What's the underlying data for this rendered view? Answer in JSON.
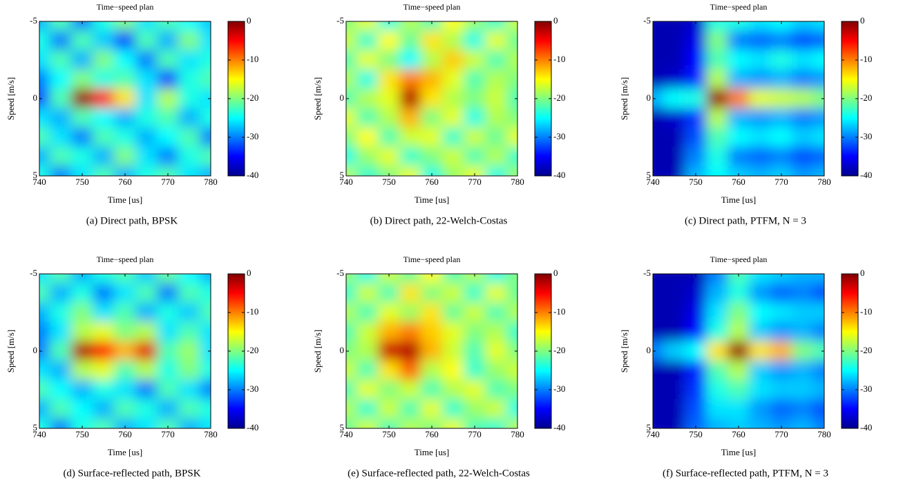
{
  "chart_data": [
    {
      "type": "heatmap",
      "title": "Time−speed plan",
      "x_label": "Time [us]",
      "y_label": "Speed [m/s]",
      "caption": "(a)  Direct path, BPSK",
      "x": [
        740,
        745,
        750,
        755,
        760,
        765,
        770,
        775,
        780
      ],
      "y": [
        -5,
        -3.75,
        -2.5,
        -1.25,
        0,
        1.25,
        2.5,
        3.75,
        5
      ],
      "z": [
        [
          -28,
          -22,
          -30,
          -24,
          -20,
          -26,
          -22,
          -25,
          -27
        ],
        [
          -24,
          -30,
          -22,
          -27,
          -32,
          -22,
          -28,
          -20,
          -26
        ],
        [
          -26,
          -22,
          -28,
          -20,
          -25,
          -30,
          -22,
          -26,
          -24
        ],
        [
          -30,
          -25,
          -20,
          -24,
          -22,
          -26,
          -32,
          -24,
          -22
        ],
        [
          -32,
          -22,
          -1,
          -6,
          -14,
          -26,
          -18,
          -24,
          -26
        ],
        [
          -26,
          -28,
          -22,
          -25,
          -28,
          -24,
          -22,
          -28,
          -24
        ],
        [
          -22,
          -26,
          -30,
          -22,
          -24,
          -28,
          -25,
          -22,
          -30
        ],
        [
          -28,
          -22,
          -24,
          -28,
          -20,
          -26,
          -30,
          -24,
          -22
        ],
        [
          -24,
          -30,
          -26,
          -22,
          -28,
          -24,
          -22,
          -26,
          -28
        ]
      ],
      "xlim": [
        740,
        780
      ],
      "ylim": [
        -5,
        5
      ],
      "y_reversed": true,
      "xticks": [
        740,
        750,
        760,
        770,
        780
      ],
      "yticks": [
        -5,
        0,
        5
      ],
      "clim": [
        -40,
        0
      ],
      "cticks": [
        0,
        -10,
        -20,
        -30,
        -40
      ],
      "colormap": "jet"
    },
    {
      "type": "heatmap",
      "title": "Time−speed plan",
      "x_label": "Time [us]",
      "y_label": "Speed [m/s]",
      "caption": "(b)  Direct path, 22-Welch-Costas",
      "x": [
        740,
        745,
        750,
        755,
        760,
        765,
        770,
        775,
        780
      ],
      "y": [
        -5,
        -3.75,
        -2.5,
        -1.25,
        0,
        1.25,
        2.5,
        3.75,
        5
      ],
      "z": [
        [
          -20,
          -16,
          -24,
          -18,
          -22,
          -15,
          -19,
          -23,
          -17
        ],
        [
          -17,
          -23,
          -15,
          -21,
          -14,
          -18,
          -24,
          -16,
          -21
        ],
        [
          -22,
          -16,
          -20,
          -25,
          -18,
          -13,
          -17,
          -22,
          -18
        ],
        [
          -18,
          -24,
          -14,
          -10,
          -12,
          -16,
          -22,
          -18,
          -20
        ],
        [
          -22,
          -18,
          -16,
          -2,
          -14,
          -18,
          -20,
          -17,
          -22
        ],
        [
          -16,
          -22,
          -18,
          -12,
          -20,
          -16,
          -24,
          -18,
          -20
        ],
        [
          -20,
          -15,
          -22,
          -17,
          -16,
          -23,
          -17,
          -21,
          -16
        ],
        [
          -24,
          -19,
          -16,
          -23,
          -20,
          -17,
          -22,
          -18,
          -23
        ],
        [
          -18,
          -23,
          -20,
          -16,
          -24,
          -19,
          -16,
          -24,
          -19
        ]
      ],
      "xlim": [
        740,
        780
      ],
      "ylim": [
        -5,
        5
      ],
      "y_reversed": true,
      "xticks": [
        740,
        750,
        760,
        770,
        780
      ],
      "yticks": [
        -5,
        0,
        5
      ],
      "clim": [
        -40,
        0
      ],
      "cticks": [
        0,
        -10,
        -20,
        -30,
        -40
      ],
      "colormap": "jet"
    },
    {
      "type": "heatmap",
      "title": "Time−speed plan",
      "x_label": "Time [us]",
      "y_label": "Speed [m/s]",
      "caption": "(c)  Direct path, PTFM, N = 3",
      "x": [
        740,
        745,
        750,
        755,
        760,
        765,
        770,
        775,
        780
      ],
      "y": [
        -5,
        -3.75,
        -2.5,
        -1.25,
        0,
        1.25,
        2.5,
        3.75,
        5
      ],
      "z": [
        [
          -38,
          -38,
          -37,
          -24,
          -24,
          -26,
          -25,
          -27,
          -26
        ],
        [
          -38,
          -38,
          -36,
          -20,
          -30,
          -31,
          -30,
          -32,
          -31
        ],
        [
          -38,
          -38,
          -35,
          -22,
          -25,
          -26,
          -24,
          -26,
          -25
        ],
        [
          -38,
          -37,
          -34,
          -18,
          -28,
          -29,
          -28,
          -30,
          -29
        ],
        [
          -28,
          -25,
          -24,
          -1,
          -10,
          -16,
          -17,
          -18,
          -20
        ],
        [
          -38,
          -37,
          -33,
          -18,
          -28,
          -29,
          -28,
          -30,
          -29
        ],
        [
          -38,
          -38,
          -32,
          -22,
          -25,
          -26,
          -25,
          -27,
          -26
        ],
        [
          -38,
          -38,
          -30,
          -24,
          -30,
          -31,
          -30,
          -32,
          -31
        ],
        [
          -38,
          -38,
          -28,
          -25,
          -27,
          -28,
          -27,
          -29,
          -28
        ]
      ],
      "xlim": [
        740,
        780
      ],
      "ylim": [
        -5,
        5
      ],
      "y_reversed": true,
      "xticks": [
        740,
        750,
        760,
        770,
        780
      ],
      "yticks": [
        -5,
        0,
        5
      ],
      "clim": [
        -40,
        0
      ],
      "cticks": [
        0,
        -10,
        -20,
        -30,
        -40
      ],
      "colormap": "jet"
    },
    {
      "type": "heatmap",
      "title": "Time−speed plan",
      "x_label": "Time [us]",
      "y_label": "Speed [m/s]",
      "caption": "(d)  Surface-reflected path, BPSK",
      "x": [
        740,
        745,
        750,
        755,
        760,
        765,
        770,
        775,
        780
      ],
      "y": [
        -5,
        -3.75,
        -2.5,
        -1.25,
        0,
        1.25,
        2.5,
        3.75,
        5
      ],
      "z": [
        [
          -26,
          -22,
          -28,
          -24,
          -22,
          -27,
          -21,
          -25,
          -28
        ],
        [
          -22,
          -28,
          -24,
          -30,
          -26,
          -22,
          -30,
          -22,
          -24
        ],
        [
          -28,
          -24,
          -20,
          -26,
          -22,
          -28,
          -24,
          -27,
          -22
        ],
        [
          -30,
          -26,
          -18,
          -16,
          -20,
          -18,
          -26,
          -22,
          -26
        ],
        [
          -30,
          -22,
          -2,
          -5,
          -12,
          -4,
          -22,
          -19,
          -26
        ],
        [
          -26,
          -28,
          -18,
          -16,
          -22,
          -18,
          -24,
          -20,
          -24
        ],
        [
          -22,
          -25,
          -28,
          -24,
          -26,
          -30,
          -22,
          -26,
          -30
        ],
        [
          -28,
          -22,
          -25,
          -28,
          -22,
          -24,
          -28,
          -22,
          -24
        ],
        [
          -24,
          -30,
          -24,
          -22,
          -28,
          -26,
          -22,
          -28,
          -26
        ]
      ],
      "xlim": [
        740,
        780
      ],
      "ylim": [
        -5,
        5
      ],
      "y_reversed": true,
      "xticks": [
        740,
        750,
        760,
        770,
        780
      ],
      "yticks": [
        -5,
        0,
        5
      ],
      "clim": [
        -40,
        0
      ],
      "cticks": [
        0,
        -10,
        -20,
        -30,
        -40
      ],
      "colormap": "jet"
    },
    {
      "type": "heatmap",
      "title": "Time−speed plan",
      "x_label": "Time [us]",
      "y_label": "Speed [m/s]",
      "caption": "(e)  Surface-reflected path, 22-Welch-Costas",
      "x": [
        740,
        745,
        750,
        755,
        760,
        765,
        770,
        775,
        780
      ],
      "y": [
        -5,
        -3.75,
        -2.5,
        -1.25,
        0,
        1.25,
        2.5,
        3.75,
        5
      ],
      "z": [
        [
          -19,
          -24,
          -17,
          -21,
          -15,
          -22,
          -18,
          -24,
          -20
        ],
        [
          -23,
          -17,
          -22,
          -14,
          -20,
          -17,
          -23,
          -16,
          -21
        ],
        [
          -18,
          -22,
          -16,
          -19,
          -14,
          -21,
          -17,
          -22,
          -18
        ],
        [
          -22,
          -17,
          -12,
          -10,
          -13,
          -16,
          -20,
          -18,
          -23
        ],
        [
          -20,
          -18,
          -3,
          -2,
          -12,
          -17,
          -22,
          -16,
          -20
        ],
        [
          -17,
          -22,
          -14,
          -9,
          -18,
          -15,
          -23,
          -19,
          -17
        ],
        [
          -22,
          -16,
          -20,
          -17,
          -22,
          -18,
          -16,
          -22,
          -20
        ],
        [
          -18,
          -23,
          -17,
          -22,
          -16,
          -23,
          -19,
          -17,
          -24
        ],
        [
          -21,
          -17,
          -22,
          -18,
          -20,
          -16,
          -22,
          -23,
          -18
        ]
      ],
      "xlim": [
        740,
        780
      ],
      "ylim": [
        -5,
        5
      ],
      "y_reversed": true,
      "xticks": [
        740,
        750,
        760,
        770,
        780
      ],
      "yticks": [
        -5,
        0,
        5
      ],
      "clim": [
        -40,
        0
      ],
      "cticks": [
        0,
        -10,
        -20,
        -30,
        -40
      ],
      "colormap": "jet"
    },
    {
      "type": "heatmap",
      "title": "Time−speed plan",
      "x_label": "Time [us]",
      "y_label": "Speed [m/s]",
      "caption": "(f)  Surface-reflected path, PTFM, N = 3",
      "x": [
        740,
        745,
        750,
        755,
        760,
        765,
        770,
        775,
        780
      ],
      "y": [
        -5,
        -3.75,
        -2.5,
        -1.25,
        0,
        1.25,
        2.5,
        3.75,
        5
      ],
      "z": [
        [
          -38,
          -38,
          -38,
          -30,
          -22,
          -26,
          -27,
          -28,
          -28
        ],
        [
          -38,
          -38,
          -37,
          -28,
          -24,
          -29,
          -31,
          -30,
          -32
        ],
        [
          -38,
          -38,
          -36,
          -26,
          -20,
          -25,
          -26,
          -27,
          -27
        ],
        [
          -38,
          -38,
          -35,
          -24,
          -18,
          -27,
          -29,
          -28,
          -30
        ],
        [
          -30,
          -27,
          -25,
          -14,
          -1,
          -14,
          -12,
          -20,
          -22
        ],
        [
          -38,
          -38,
          -34,
          -22,
          -18,
          -27,
          -29,
          -28,
          -30
        ],
        [
          -38,
          -38,
          -33,
          -24,
          -22,
          -26,
          -27,
          -27,
          -28
        ],
        [
          -38,
          -38,
          -32,
          -26,
          -26,
          -29,
          -31,
          -30,
          -32
        ],
        [
          -38,
          -38,
          -31,
          -28,
          -27,
          -28,
          -29,
          -28,
          -30
        ]
      ],
      "xlim": [
        740,
        780
      ],
      "ylim": [
        -5,
        5
      ],
      "y_reversed": true,
      "xticks": [
        740,
        750,
        760,
        770,
        780
      ],
      "yticks": [
        -5,
        0,
        5
      ],
      "clim": [
        -40,
        0
      ],
      "cticks": [
        0,
        -10,
        -20,
        -30,
        -40
      ],
      "colormap": "jet"
    }
  ]
}
